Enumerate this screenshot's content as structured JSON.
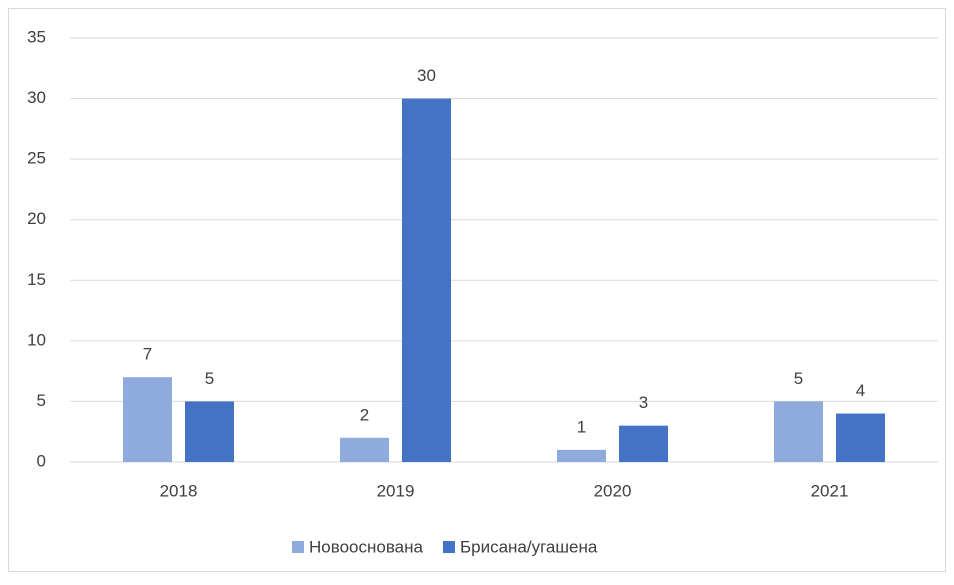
{
  "chart_data": {
    "type": "bar",
    "categories": [
      "2018",
      "2019",
      "2020",
      "2021"
    ],
    "series": [
      {
        "name": "Новооснована",
        "color": "#8faadc",
        "values": [
          7,
          2,
          1,
          5
        ]
      },
      {
        "name": "Брисана/угашена",
        "color": "#4472c4",
        "values": [
          5,
          30,
          3,
          4
        ]
      }
    ],
    "ylim": [
      0,
      35
    ],
    "yticks": [
      0,
      5,
      10,
      15,
      20,
      25,
      30,
      35
    ],
    "grid": true,
    "legend": "bottom",
    "data_labels": true
  }
}
